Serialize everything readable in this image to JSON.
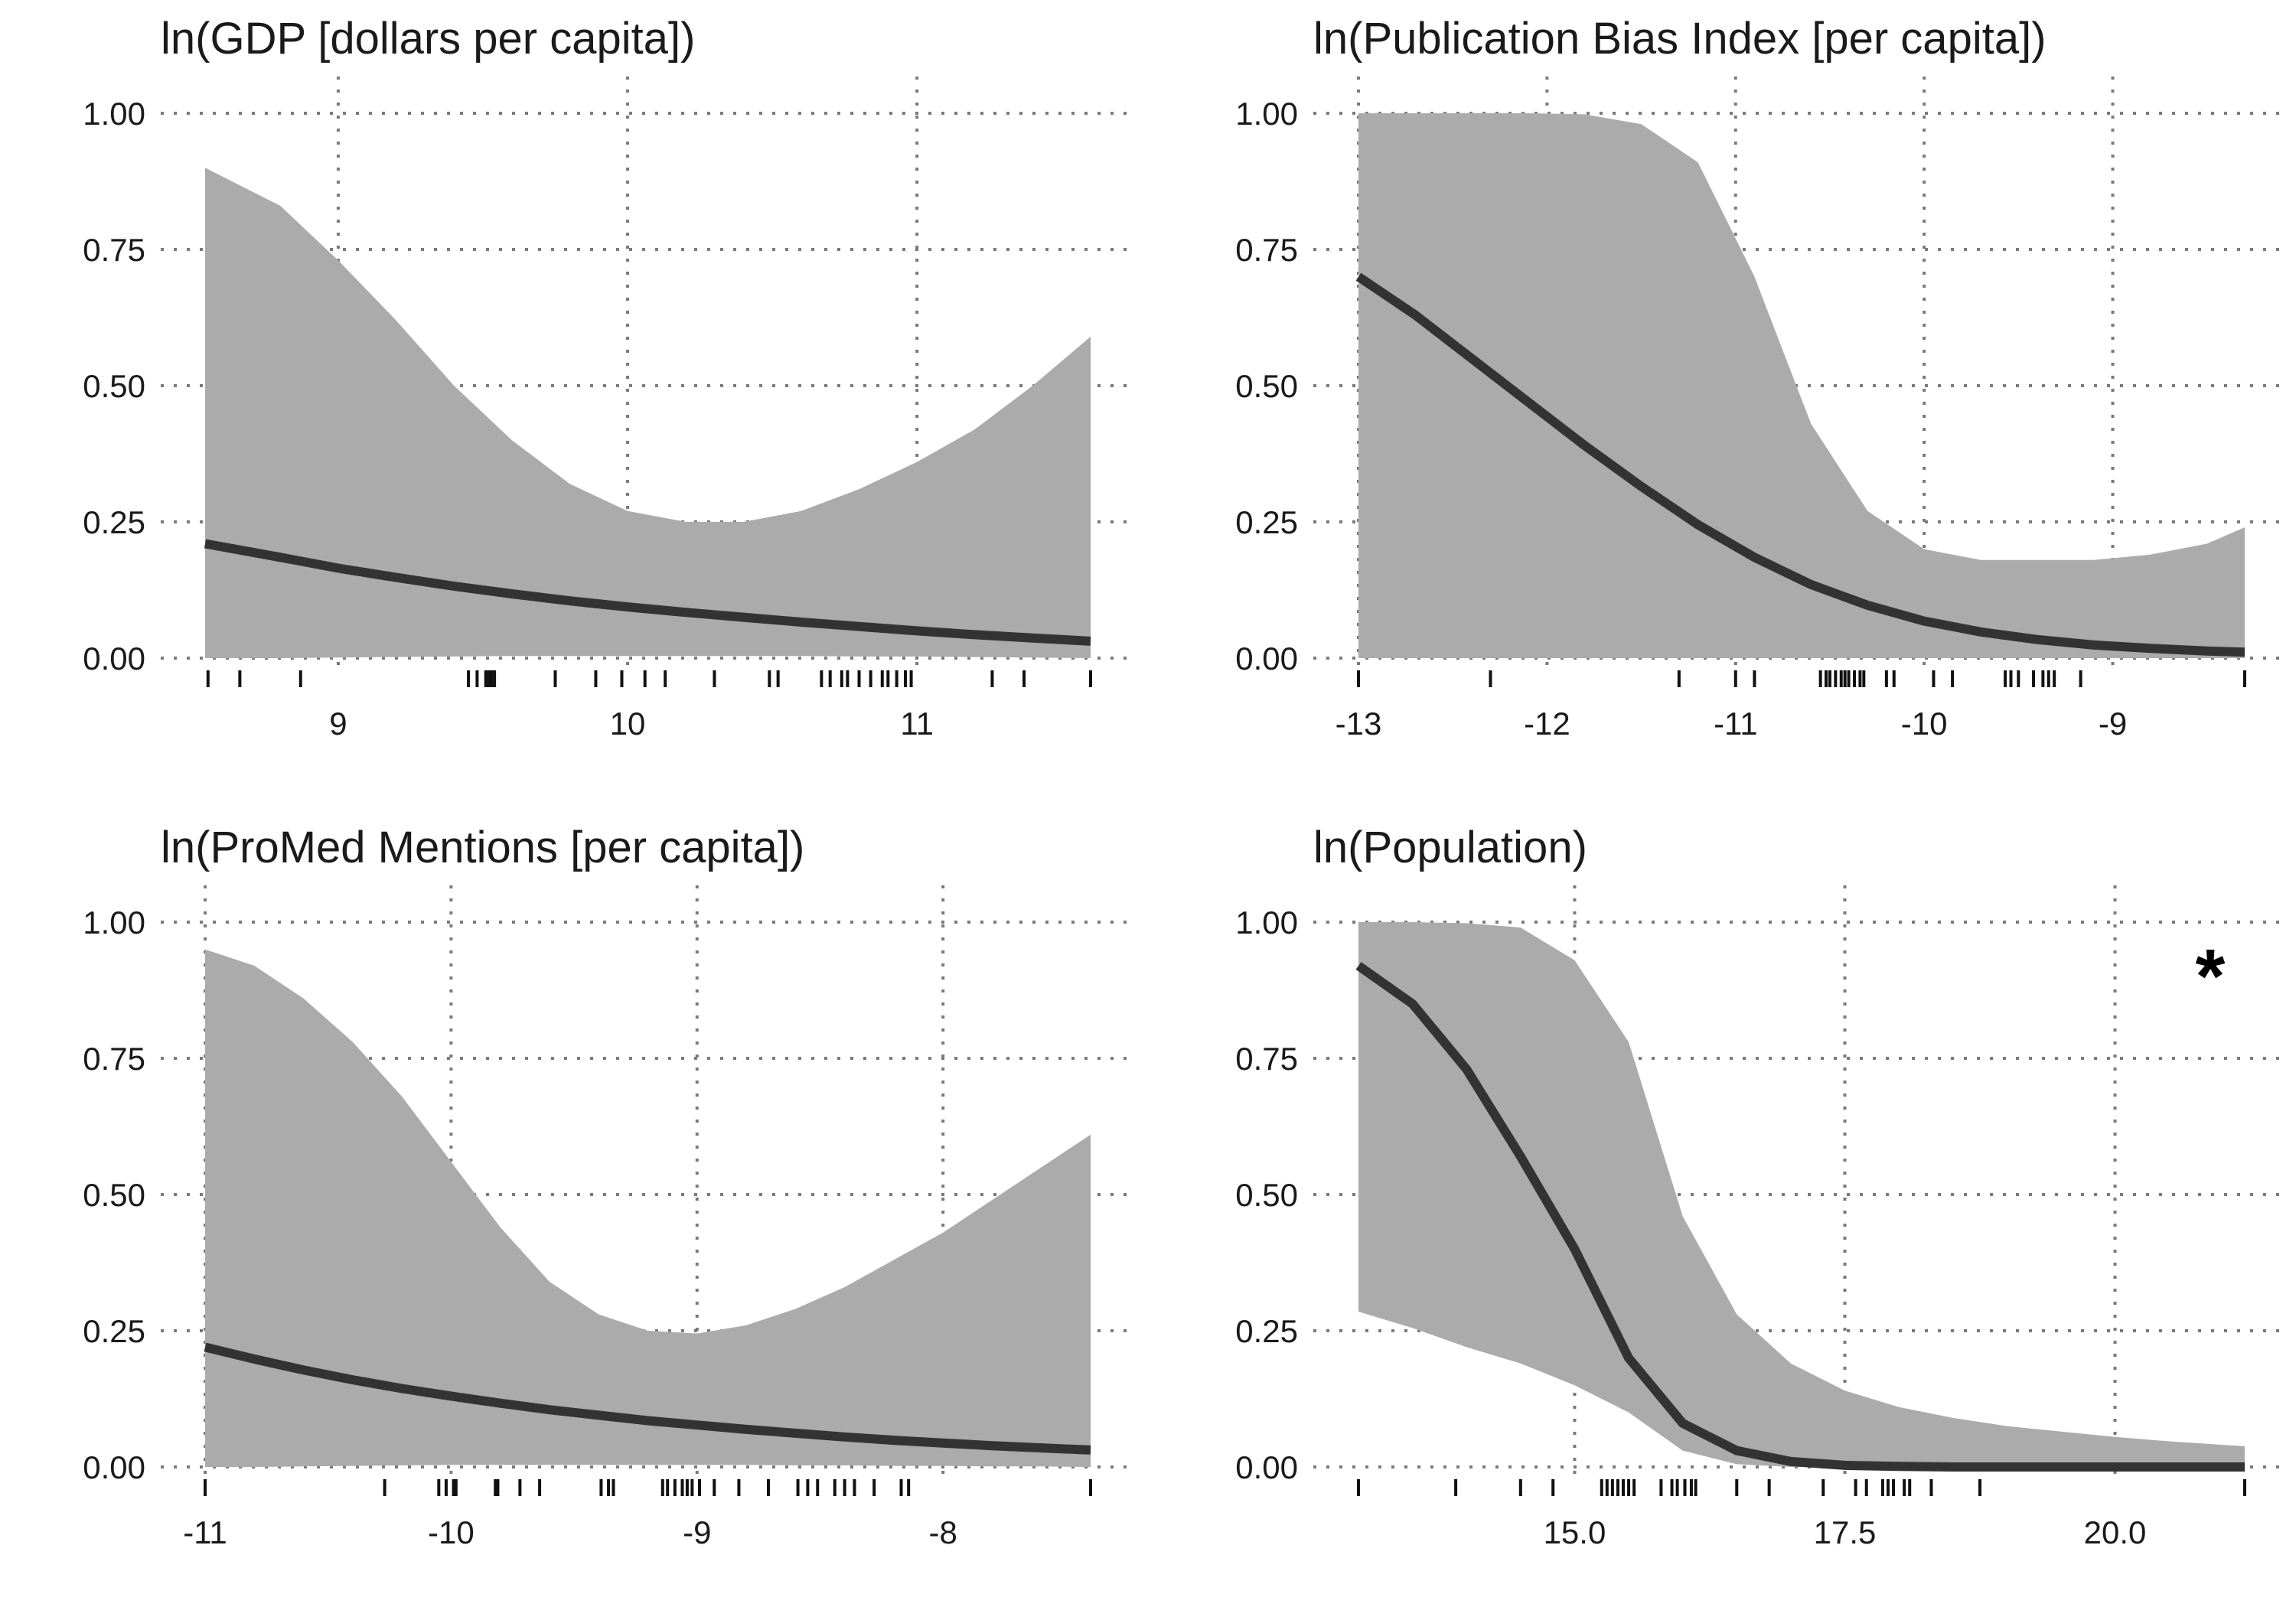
{
  "chart_data": [
    {
      "type": "area",
      "title": "ln(GDP [dollars per capita])",
      "xlim": [
        8.54,
        11.6
      ],
      "ylim": [
        0,
        1
      ],
      "xticks": [
        9,
        10,
        11
      ],
      "xtick_labels": [
        "9",
        "10",
        "11"
      ],
      "yticks": [
        0,
        0.25,
        0.5,
        0.75,
        1.0
      ],
      "ytick_labels": [
        "0.00",
        "0.25",
        "0.50",
        "0.75",
        "1.00"
      ],
      "grid": true,
      "colors": {
        "band": "#ababab",
        "line": "#333333"
      },
      "series": [
        {
          "x": [
            8.54,
            8.8,
            9.0,
            9.2,
            9.4,
            9.6,
            9.8,
            10.0,
            10.2,
            10.4,
            10.6,
            10.8,
            11.0,
            11.2,
            11.4,
            11.6
          ],
          "fit": [
            0.21,
            0.185,
            0.165,
            0.148,
            0.132,
            0.118,
            0.105,
            0.094,
            0.084,
            0.075,
            0.066,
            0.058,
            0.05,
            0.043,
            0.037,
            0.031
          ],
          "lower": [
            0.0,
            0.0,
            0.001,
            0.002,
            0.003,
            0.004,
            0.004,
            0.004,
            0.004,
            0.004,
            0.004,
            0.003,
            0.003,
            0.002,
            0.001,
            0.0
          ],
          "upper": [
            0.9,
            0.83,
            0.73,
            0.62,
            0.5,
            0.4,
            0.32,
            0.27,
            0.25,
            0.25,
            0.27,
            0.31,
            0.36,
            0.42,
            0.5,
            0.59
          ]
        }
      ],
      "rug": [
        8.55,
        8.66,
        8.87,
        9.45,
        9.48,
        9.51,
        9.52,
        9.53,
        9.54,
        9.75,
        9.89,
        9.98,
        10.06,
        10.13,
        10.3,
        10.49,
        10.52,
        10.67,
        10.7,
        10.74,
        10.76,
        10.8,
        10.84,
        10.88,
        10.9,
        10.93,
        10.96,
        10.98,
        11.26,
        11.37,
        11.6
      ]
    },
    {
      "type": "area",
      "title": "ln(Publication Bias Index [per capita])",
      "xlim": [
        -13.0,
        -8.3
      ],
      "ylim": [
        0,
        1
      ],
      "xticks": [
        -13,
        -12,
        -11,
        -10,
        -9
      ],
      "xtick_labels": [
        "-13",
        "-12",
        "-11",
        "-10",
        "-9"
      ],
      "yticks": [
        0,
        0.25,
        0.5,
        0.75,
        1.0
      ],
      "ytick_labels": [
        "0.00",
        "0.25",
        "0.50",
        "0.75",
        "1.00"
      ],
      "grid": true,
      "colors": {
        "band": "#ababab",
        "line": "#333333"
      },
      "series": [
        {
          "x": [
            -13.0,
            -12.7,
            -12.4,
            -12.1,
            -11.8,
            -11.5,
            -11.2,
            -10.9,
            -10.6,
            -10.3,
            -10.0,
            -9.7,
            -9.4,
            -9.1,
            -8.8,
            -8.5,
            -8.3
          ],
          "fit": [
            0.7,
            0.63,
            0.55,
            0.47,
            0.39,
            0.315,
            0.245,
            0.185,
            0.135,
            0.097,
            0.068,
            0.048,
            0.034,
            0.024,
            0.018,
            0.013,
            0.011
          ],
          "lower": [
            0.0,
            0.0,
            0.0,
            0.0,
            0.0,
            0.0,
            0.0,
            0.0,
            0.0,
            0.0,
            0.0,
            0.0,
            0.0,
            0.0,
            0.0,
            0.0,
            0.0
          ],
          "upper": [
            1.0,
            1.0,
            1.0,
            1.0,
            0.998,
            0.98,
            0.91,
            0.7,
            0.43,
            0.27,
            0.2,
            0.18,
            0.18,
            0.18,
            0.19,
            0.21,
            0.24
          ]
        }
      ],
      "rug": [
        -13.0,
        -12.3,
        -11.3,
        -11.0,
        -10.9,
        -10.55,
        -10.52,
        -10.5,
        -10.47,
        -10.44,
        -10.42,
        -10.4,
        -10.37,
        -10.34,
        -10.32,
        -10.2,
        -10.16,
        -9.95,
        -9.85,
        -9.57,
        -9.54,
        -9.5,
        -9.42,
        -9.37,
        -9.34,
        -9.31,
        -9.17,
        -8.3
      ]
    },
    {
      "type": "area",
      "title": "ln(ProMed Mentions [per capita])",
      "xlim": [
        -11.0,
        -7.4
      ],
      "ylim": [
        0,
        1
      ],
      "xticks": [
        -11,
        -10,
        -9,
        -8
      ],
      "xtick_labels": [
        "-11",
        "-10",
        "-9",
        "-8"
      ],
      "yticks": [
        0,
        0.25,
        0.5,
        0.75,
        1.0
      ],
      "ytick_labels": [
        "0.00",
        "0.25",
        "0.50",
        "0.75",
        "1.00"
      ],
      "grid": true,
      "colors": {
        "band": "#ababab",
        "line": "#333333"
      },
      "series": [
        {
          "x": [
            -11.0,
            -10.8,
            -10.6,
            -10.4,
            -10.2,
            -10.0,
            -9.8,
            -9.6,
            -9.4,
            -9.2,
            -9.0,
            -8.8,
            -8.6,
            -8.4,
            -8.2,
            -8.0,
            -7.8,
            -7.6,
            -7.4
          ],
          "fit": [
            0.22,
            0.198,
            0.178,
            0.16,
            0.144,
            0.13,
            0.117,
            0.105,
            0.095,
            0.085,
            0.077,
            0.069,
            0.062,
            0.055,
            0.049,
            0.044,
            0.039,
            0.035,
            0.031
          ],
          "lower": [
            0.0,
            0.0,
            0.001,
            0.002,
            0.003,
            0.004,
            0.004,
            0.004,
            0.004,
            0.004,
            0.004,
            0.004,
            0.003,
            0.003,
            0.002,
            0.002,
            0.001,
            0.001,
            0.0
          ],
          "upper": [
            0.95,
            0.92,
            0.86,
            0.78,
            0.68,
            0.56,
            0.44,
            0.34,
            0.28,
            0.25,
            0.245,
            0.26,
            0.29,
            0.33,
            0.38,
            0.43,
            0.49,
            0.55,
            0.61
          ]
        }
      ],
      "rug": [
        -11.0,
        -10.27,
        -10.05,
        -10.02,
        -9.99,
        -9.98,
        -9.82,
        -9.81,
        -9.72,
        -9.64,
        -9.39,
        -9.36,
        -9.34,
        -9.14,
        -9.12,
        -9.09,
        -9.06,
        -9.04,
        -9.02,
        -8.99,
        -8.93,
        -8.83,
        -8.71,
        -8.59,
        -8.55,
        -8.51,
        -8.44,
        -8.4,
        -8.36,
        -8.28,
        -8.17,
        -8.14,
        -7.4
      ]
    },
    {
      "type": "area",
      "title": "ln(Population)",
      "xlim": [
        13.0,
        21.2
      ],
      "ylim": [
        0,
        1
      ],
      "xticks": [
        15.0,
        17.5,
        20.0
      ],
      "xtick_labels": [
        "15.0",
        "17.5",
        "20.0"
      ],
      "yticks": [
        0,
        0.25,
        0.5,
        0.75,
        1.0
      ],
      "ytick_labels": [
        "0.00",
        "0.25",
        "0.50",
        "0.75",
        "1.00"
      ],
      "grid": true,
      "colors": {
        "band": "#ababab",
        "line": "#333333"
      },
      "annotation": "*",
      "series": [
        {
          "x": [
            13.0,
            13.5,
            14.0,
            14.5,
            15.0,
            15.5,
            16.0,
            16.5,
            17.0,
            17.5,
            18.0,
            18.5,
            19.0,
            19.5,
            20.0,
            20.5,
            21.2
          ],
          "fit": [
            0.92,
            0.85,
            0.73,
            0.57,
            0.4,
            0.2,
            0.08,
            0.03,
            0.01,
            0.003,
            0.001,
            0.0,
            0.0,
            0.0,
            0.0,
            0.0,
            0.0
          ],
          "lower": [
            0.285,
            0.255,
            0.22,
            0.19,
            0.15,
            0.1,
            0.03,
            0.005,
            0.0,
            0.0,
            0.0,
            0.0,
            0.0,
            0.0,
            0.0,
            0.0,
            0.0
          ],
          "upper": [
            1.0,
            1.0,
            0.998,
            0.99,
            0.93,
            0.78,
            0.46,
            0.28,
            0.19,
            0.14,
            0.11,
            0.09,
            0.075,
            0.065,
            0.055,
            0.047,
            0.038
          ]
        }
      ],
      "rug": [
        13.0,
        13.9,
        14.5,
        14.8,
        15.25,
        15.3,
        15.35,
        15.4,
        15.45,
        15.5,
        15.55,
        15.8,
        15.9,
        15.95,
        16.02,
        16.08,
        16.12,
        16.5,
        16.8,
        17.3,
        17.6,
        17.7,
        17.85,
        17.9,
        17.95,
        18.05,
        18.1,
        18.3,
        18.75,
        21.2
      ]
    }
  ]
}
